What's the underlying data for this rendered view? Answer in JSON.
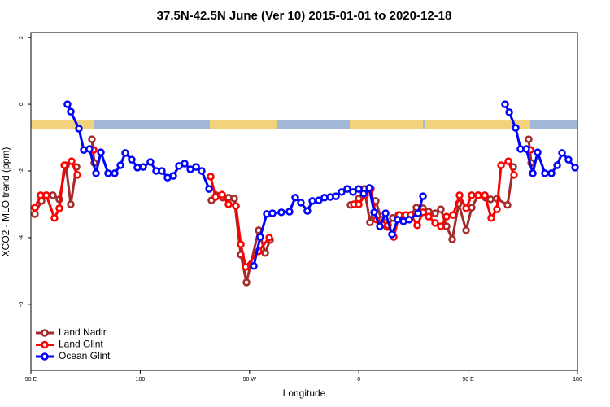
{
  "chart_data": {
    "type": "line",
    "title": "37.5N-42.5N June (Ver 10)   2015-01-01 to 2020-12-18",
    "xlabel": "Longitude",
    "ylabel": "XCO2 - MLO trend (ppm)",
    "xlim": [
      90,
      540
    ],
    "ylim": [
      -7.98,
      2.15
    ],
    "xticks": [
      {
        "value": 90,
        "label": "90 E"
      },
      {
        "value": 180,
        "label": "180"
      },
      {
        "value": 270,
        "label": "90 W"
      },
      {
        "value": 360,
        "label": "0"
      },
      {
        "value": 450,
        "label": "90 E"
      },
      {
        "value": 540,
        "label": "180"
      }
    ],
    "yticks": [
      2,
      0,
      -2,
      -4,
      -6
    ],
    "legend": "bottom-left",
    "series": [
      {
        "name": "Land Nadir",
        "color": "#a52a2a",
        "x": [
          93.3,
          98.7,
          102.7,
          108.1,
          113.4,
          118.8,
          122.8,
          127.5,
          null,
          140.2,
          142.2,
          null,
          238.7,
          242.7,
          248,
          252.7,
          257.4,
          262.8,
          267.5,
          277.5,
          282.9,
          286.9,
          null,
          353.2,
          359.9,
          364.6,
          369.2,
          373.9,
          378.6,
          383.3,
          388,
          392.7,
          398,
          402.7,
          407.4,
          412.8,
          417.5,
          422.8,
          427.5,
          432.2,
          436.9,
          442.2,
          448.3,
          452.9,
          458.3,
          464.3,
          468.4,
          473.7,
          482.4,
          487.1,
          null,
          499.8,
          501.9
        ],
        "values": [
          -3.29,
          -2.9,
          -2.73,
          -2.73,
          -2.85,
          -1.83,
          -3.0,
          -1.88,
          null,
          -1.05,
          -1.76,
          null,
          -2.88,
          -2.73,
          -2.8,
          -2.8,
          -2.83,
          -4.51,
          -5.34,
          -3.78,
          -4.46,
          -4.07,
          null,
          -3.02,
          -2.83,
          -2.54,
          -3.54,
          -2.9,
          -3.46,
          -3.68,
          -3.41,
          -3.32,
          -3.37,
          -3.32,
          -3.1,
          -3.12,
          -3.22,
          -3.27,
          -3.15,
          -3.66,
          -4.05,
          -2.98,
          -3.78,
          -3.1,
          -2.73,
          -2.8,
          -2.85,
          -2.83,
          -3.02,
          -1.88,
          null,
          -1.05,
          -1.76
        ]
      },
      {
        "name": "Land Glint",
        "color": "#ff0000",
        "x": [
          93.3,
          98,
          102.7,
          109.4,
          113.4,
          117.5,
          123.5,
          128.2,
          null,
          141.6,
          null,
          238,
          242,
          247.4,
          252.7,
          258.8,
          262.8,
          266.8,
          277.5,
          286.2,
          null,
          355.9,
          359.9,
          365.2,
          369.9,
          374.6,
          379.3,
          384,
          388.7,
          393.3,
          398.7,
          402.7,
          408.1,
          412.8,
          417.5,
          422.8,
          427.5,
          432.2,
          437.6,
          442.9,
          448.3,
          452.9,
          458.3,
          463.7,
          469,
          473.7,
          477.1,
          483.1,
          487.8,
          null,
          501.2
        ],
        "values": [
          -3.1,
          -2.73,
          -2.73,
          -3.41,
          -3.12,
          -1.83,
          -1.71,
          -2.12,
          null,
          -1.37,
          null,
          -2.17,
          -2.78,
          -2.71,
          -3.0,
          -3.05,
          -4.2,
          -4.88,
          -4.41,
          -4.0,
          null,
          -3.0,
          -3.0,
          -2.73,
          -2.54,
          -3.46,
          -3.61,
          -3.63,
          -3.98,
          -3.32,
          -3.32,
          -3.32,
          -3.63,
          -3.24,
          -3.37,
          -3.56,
          -3.66,
          -3.37,
          -3.32,
          -2.73,
          -3.12,
          -2.73,
          -2.73,
          -2.73,
          -3.41,
          -3.15,
          -1.83,
          -1.71,
          -2.12,
          null,
          -1.37
        ]
      },
      {
        "name": "Ocean Glint",
        "color": "#0000ff",
        "x": [
          120.1,
          122.8,
          129.5,
          133.5,
          138.2,
          143.6,
          147.6,
          153.6,
          159,
          163.7,
          167.7,
          173,
          177.7,
          182.4,
          188.4,
          193.1,
          197.8,
          202.5,
          207.2,
          211.9,
          216.6,
          221.3,
          226,
          230.6,
          236.7,
          null,
          273.5,
          278.8,
          284.2,
          288.9,
          296.2,
          302.9,
          307.6,
          312.3,
          317.6,
          321.7,
          327,
          331.7,
          336.4,
          341.1,
          345.8,
          350.5,
          355.2,
          359.9,
          364,
          368.6,
          372.6,
          377.3,
          382,
          387.3,
          392,
          396.7,
          401.4,
          408.8,
          412.8,
          null,
          480.4,
          483.8,
          489.1,
          493.1,
          497.8,
          503.2,
          507.2,
          513.2,
          518.6,
          523.3,
          527.3,
          532.6,
          538
        ],
        "values": [
          0.0,
          -0.22,
          -0.73,
          -1.37,
          -1.34,
          -2.07,
          -1.44,
          -2.07,
          -2.07,
          -1.83,
          -1.46,
          -1.66,
          -1.9,
          -1.88,
          -1.73,
          -2.0,
          -2.0,
          -2.2,
          -2.15,
          -1.85,
          -1.78,
          -1.95,
          -1.88,
          -2.0,
          -2.54,
          null,
          -4.85,
          -3.98,
          -3.29,
          -3.27,
          -3.24,
          -3.22,
          -2.8,
          -2.95,
          -3.2,
          -2.9,
          -2.88,
          -2.8,
          -2.78,
          -2.76,
          -2.63,
          -2.54,
          -2.63,
          -2.54,
          -2.68,
          -2.51,
          -3.24,
          -3.66,
          -3.27,
          -3.9,
          -3.46,
          -3.51,
          -3.46,
          -3.27,
          -2.76,
          null,
          0.0,
          -0.24,
          -0.71,
          -1.34,
          -1.34,
          -2.07,
          -1.44,
          -2.07,
          -2.07,
          -1.83,
          -1.46,
          -1.66,
          -1.9
        ]
      }
    ]
  }
}
